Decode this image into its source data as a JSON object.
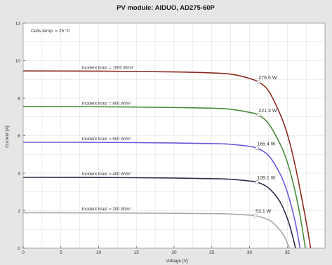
{
  "chart_data": {
    "type": "line",
    "title": "PV module:  AIDUO,  AD275-60P",
    "xlabel": "Voltage [V]",
    "ylabel": "Current [A]",
    "xlim": [
      0,
      40
    ],
    "ylim": [
      0,
      12
    ],
    "xticks": [
      0,
      5,
      10,
      15,
      20,
      25,
      30,
      35
    ],
    "yticks": [
      0,
      2,
      4,
      6,
      8,
      10,
      12
    ],
    "grid": true,
    "note": "Cells temp. = 25 °C",
    "series": [
      {
        "name": "Incident Irrad. = 1000 W/m²",
        "color": "#8b2a20",
        "mpp_label": "276.5 W",
        "mpp": [
          31.2,
          8.86
        ],
        "points": [
          [
            0,
            9.45
          ],
          [
            10,
            9.44
          ],
          [
            20,
            9.4
          ],
          [
            26,
            9.33
          ],
          [
            28,
            9.25
          ],
          [
            30,
            9.05
          ],
          [
            31.2,
            8.86
          ],
          [
            32.5,
            8.4
          ],
          [
            34,
            7.2
          ],
          [
            35,
            6.1
          ],
          [
            36,
            4.5
          ],
          [
            37,
            2.5
          ],
          [
            37.6,
            1.2
          ],
          [
            38.1,
            0
          ]
        ]
      },
      {
        "name": "Incident Irrad. = 800 W/m²",
        "color": "#4a8a3c",
        "mpp_label": "221.3 W",
        "mpp": [
          31.2,
          7.1
        ],
        "points": [
          [
            0,
            7.55
          ],
          [
            10,
            7.54
          ],
          [
            20,
            7.5
          ],
          [
            26,
            7.45
          ],
          [
            28,
            7.38
          ],
          [
            30,
            7.24
          ],
          [
            31.2,
            7.1
          ],
          [
            32.5,
            6.65
          ],
          [
            34,
            5.6
          ],
          [
            35,
            4.6
          ],
          [
            36,
            3.1
          ],
          [
            36.8,
            1.5
          ],
          [
            37.4,
            0
          ]
        ]
      },
      {
        "name": "Incident Irrad. = 600 W/m²",
        "color": "#6b5ad6",
        "mpp_label": "165.4 W",
        "mpp": [
          31.0,
          5.33
        ],
        "points": [
          [
            0,
            5.65
          ],
          [
            10,
            5.64
          ],
          [
            20,
            5.61
          ],
          [
            26,
            5.57
          ],
          [
            28,
            5.52
          ],
          [
            30,
            5.43
          ],
          [
            31.0,
            5.33
          ],
          [
            32.5,
            4.95
          ],
          [
            34,
            4.0
          ],
          [
            35,
            3.0
          ],
          [
            36,
            1.5
          ],
          [
            36.7,
            0
          ]
        ]
      },
      {
        "name": "Incident Irrad. = 400 W/m²",
        "color": "#2f2a4a",
        "mpp_label": "109.1 W",
        "mpp": [
          31.0,
          3.52
        ],
        "points": [
          [
            0,
            3.78
          ],
          [
            10,
            3.77
          ],
          [
            20,
            3.74
          ],
          [
            26,
            3.7
          ],
          [
            28,
            3.66
          ],
          [
            30,
            3.58
          ],
          [
            31.0,
            3.52
          ],
          [
            32.5,
            3.22
          ],
          [
            34,
            2.5
          ],
          [
            35,
            1.6
          ],
          [
            35.6,
            0.8
          ],
          [
            36.1,
            0
          ]
        ]
      },
      {
        "name": "Incident Irrad. = 200 W/m²",
        "color": "#a8a8a8",
        "mpp_label": "53.1 W",
        "mpp": [
          30.8,
          1.73
        ],
        "points": [
          [
            0,
            1.89
          ],
          [
            10,
            1.88
          ],
          [
            20,
            1.86
          ],
          [
            26,
            1.84
          ],
          [
            28,
            1.81
          ],
          [
            30,
            1.76
          ],
          [
            30.8,
            1.73
          ],
          [
            32.5,
            1.52
          ],
          [
            33.5,
            1.2
          ],
          [
            34.5,
            0.7
          ],
          [
            35.3,
            0
          ]
        ]
      }
    ]
  }
}
